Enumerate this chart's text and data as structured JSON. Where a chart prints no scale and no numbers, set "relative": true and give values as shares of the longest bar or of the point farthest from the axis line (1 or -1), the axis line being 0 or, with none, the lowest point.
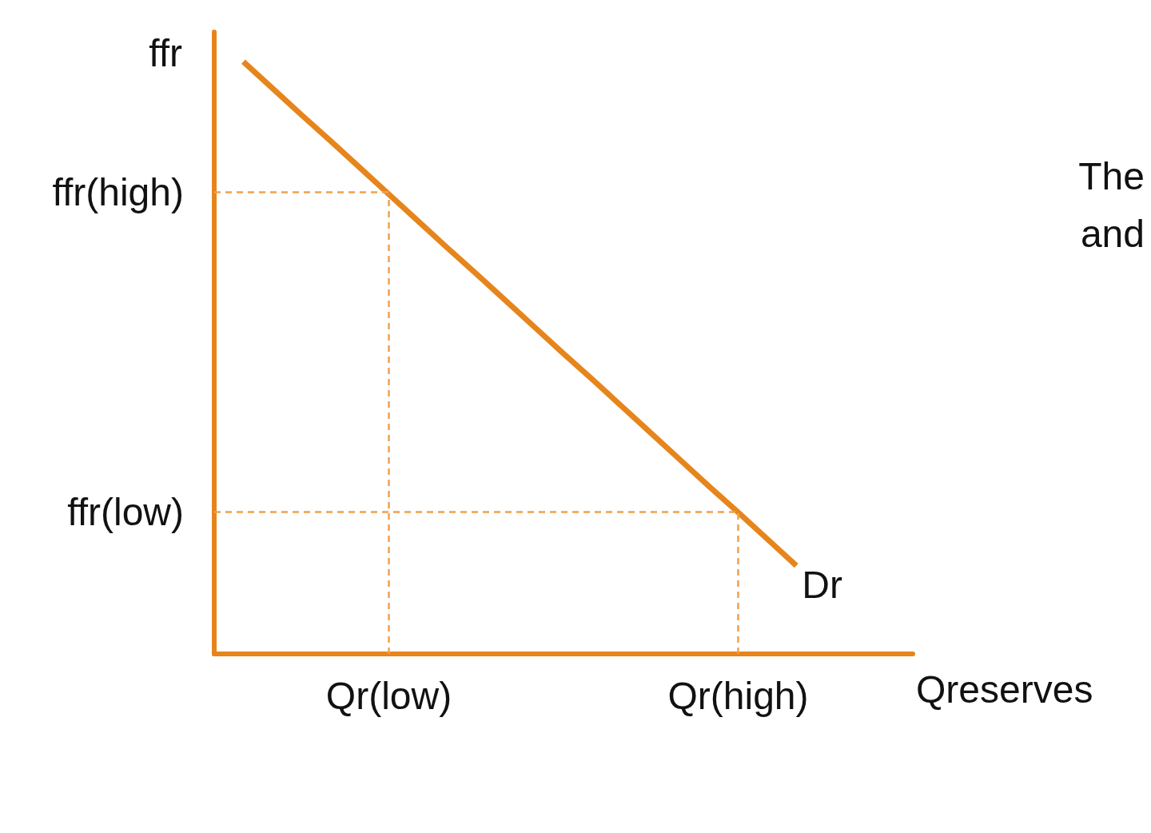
{
  "chart_data": {
    "type": "line",
    "relative": true,
    "xlabel": "Qreserves",
    "ylabel": "ffr",
    "marker": "none",
    "categories": [
      null,
      null,
      null,
      null,
      null,
      null,
      "Qr(low)",
      null,
      null,
      null,
      null,
      null,
      null,
      null,
      null,
      null,
      null,
      null,
      "Qr(high)",
      null,
      null,
      null,
      null,
      null,
      null
    ],
    "series": [
      {
        "name": "Dr",
        "color": "#e6851c",
        "values": [
          null,
          1,
          0.955,
          0.91,
          0.866,
          0.821,
          0.776,
          0.731,
          0.686,
          0.642,
          0.597,
          0.552,
          0.507,
          0.463,
          0.418,
          0.373,
          0.328,
          0.283,
          0.239,
          0.194,
          0.149,
          null,
          null,
          null,
          null
        ]
      }
    ],
    "ref_lines": [
      {
        "axis": "y",
        "value": 0.78,
        "label": "ffr(high)",
        "color": "#f0a24e",
        "line_style": "dashed"
      },
      {
        "axis": "x",
        "value": "Qr(low)",
        "color": "#f0a24e",
        "line_style": "dashed"
      },
      {
        "axis": "y",
        "value": 0.24,
        "label": "ffr(low)",
        "color": "#f0a24e",
        "line_style": "dashed"
      },
      {
        "axis": "x",
        "value": "Qr(high)",
        "color": "#f0a24e",
        "line_style": "dashed"
      }
    ],
    "annotations": [
      "The",
      "and"
    ]
  }
}
